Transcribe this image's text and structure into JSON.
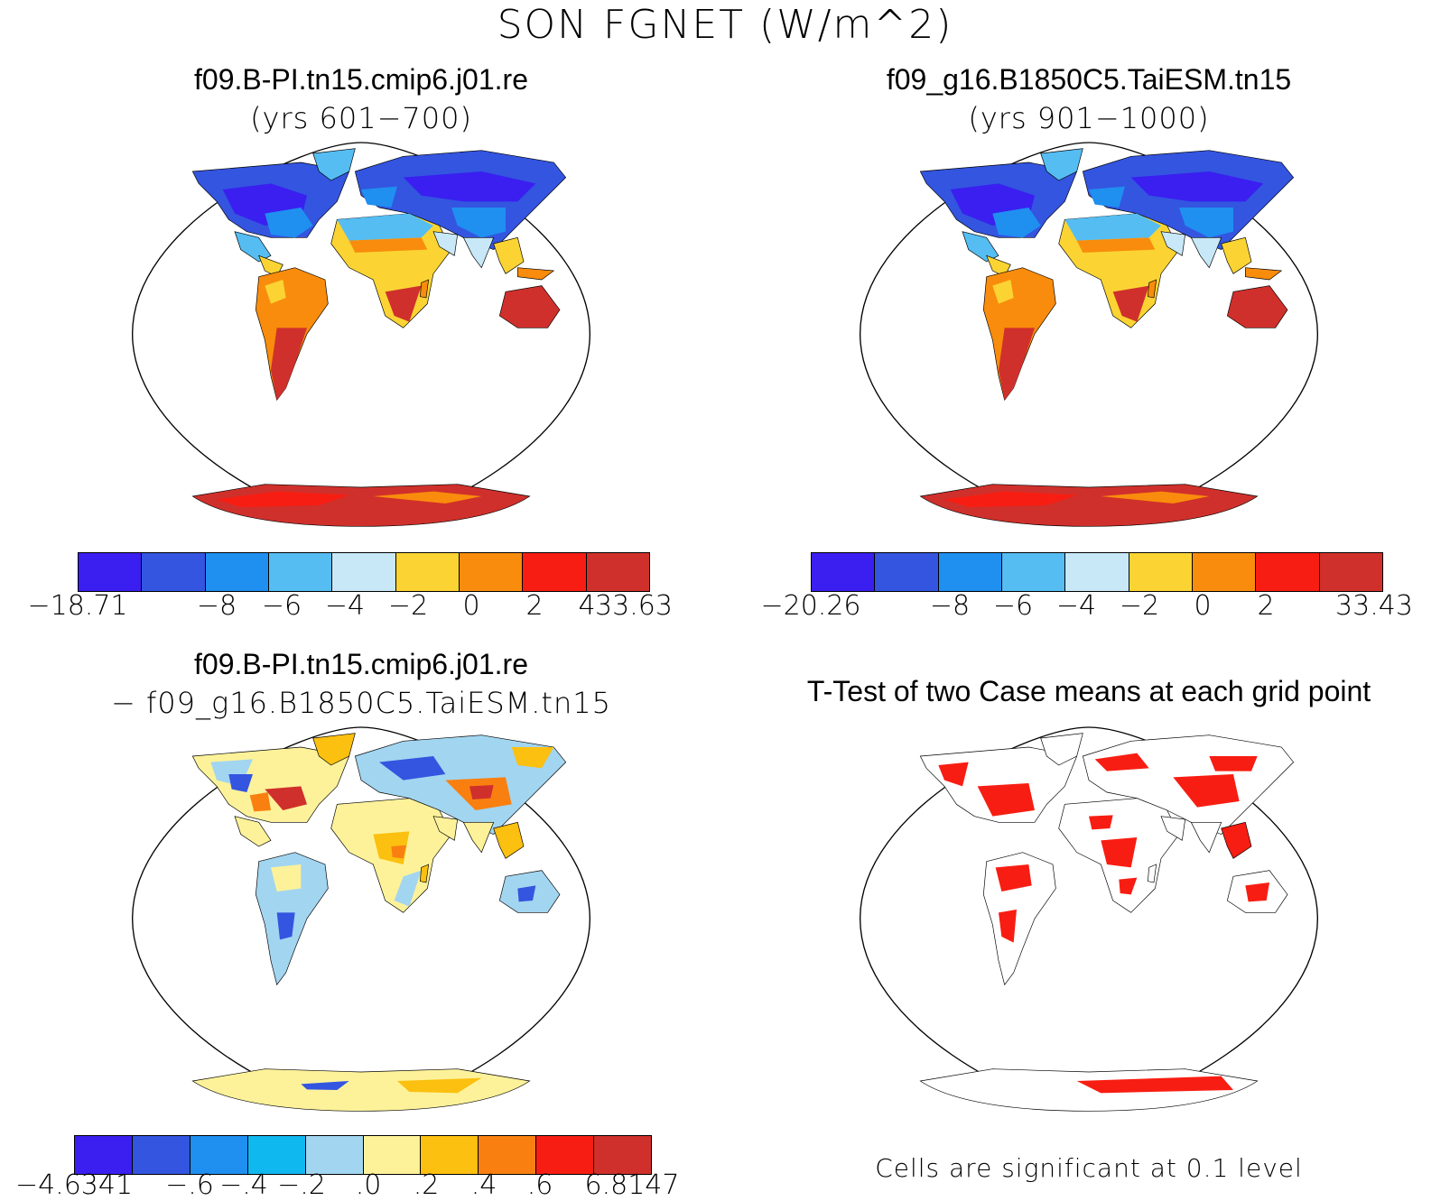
{
  "title": "SON FGNET (W/m^2)",
  "panels": {
    "p1": {
      "title1": "f09.B-PI.tn15.cmip6.j01.re",
      "title2": "(yrs 601−700)"
    },
    "p2": {
      "title1": "f09_g16.B1850C5.TaiESM.tn15",
      "title2": "(yrs 901−1000)"
    },
    "p3": {
      "title1": "f09.B-PI.tn15.cmip6.j01.re",
      "title2": "− f09_g16.B1850C5.TaiESM.tn15"
    },
    "p4": {
      "title1": "T-Test of two Case means at each grid point",
      "note": "Cells are significant at 0.1 level"
    }
  },
  "colorbars": {
    "cb1": {
      "colors": [
        "#3a1ff0",
        "#3355e0",
        "#1f8ff0",
        "#55bdf2",
        "#c8e8f8",
        "#fbd433",
        "#f98c0c",
        "#f81d12",
        "#d0302b"
      ],
      "ticks": [
        "−18.71",
        "−8",
        "−6",
        "−4",
        "−2",
        "0",
        "2",
        "4",
        "33.63"
      ]
    },
    "cb2": {
      "colors": [
        "#3a1ff0",
        "#3355e0",
        "#1f8ff0",
        "#55bdf2",
        "#c8e8f8",
        "#fbd433",
        "#f98c0c",
        "#f81d12",
        "#d0302b"
      ],
      "ticks": [
        "−20.26",
        "−8",
        "−6",
        "−4",
        "−2",
        "0",
        "2",
        "33.43"
      ]
    },
    "cb3": {
      "colors": [
        "#3a1ff0",
        "#3355e0",
        "#1f8ff0",
        "#10b8f0",
        "#a2d5f0",
        "#fdf29a",
        "#fbc010",
        "#f98010",
        "#f81d12",
        "#d0302b"
      ],
      "ticks": [
        "−4.6341",
        "−.6",
        "−.4",
        "−.2",
        ".0",
        ".2",
        ".4",
        ".6",
        "6.8147"
      ]
    }
  },
  "legend_colors": {
    "significant": "#f81d12"
  }
}
